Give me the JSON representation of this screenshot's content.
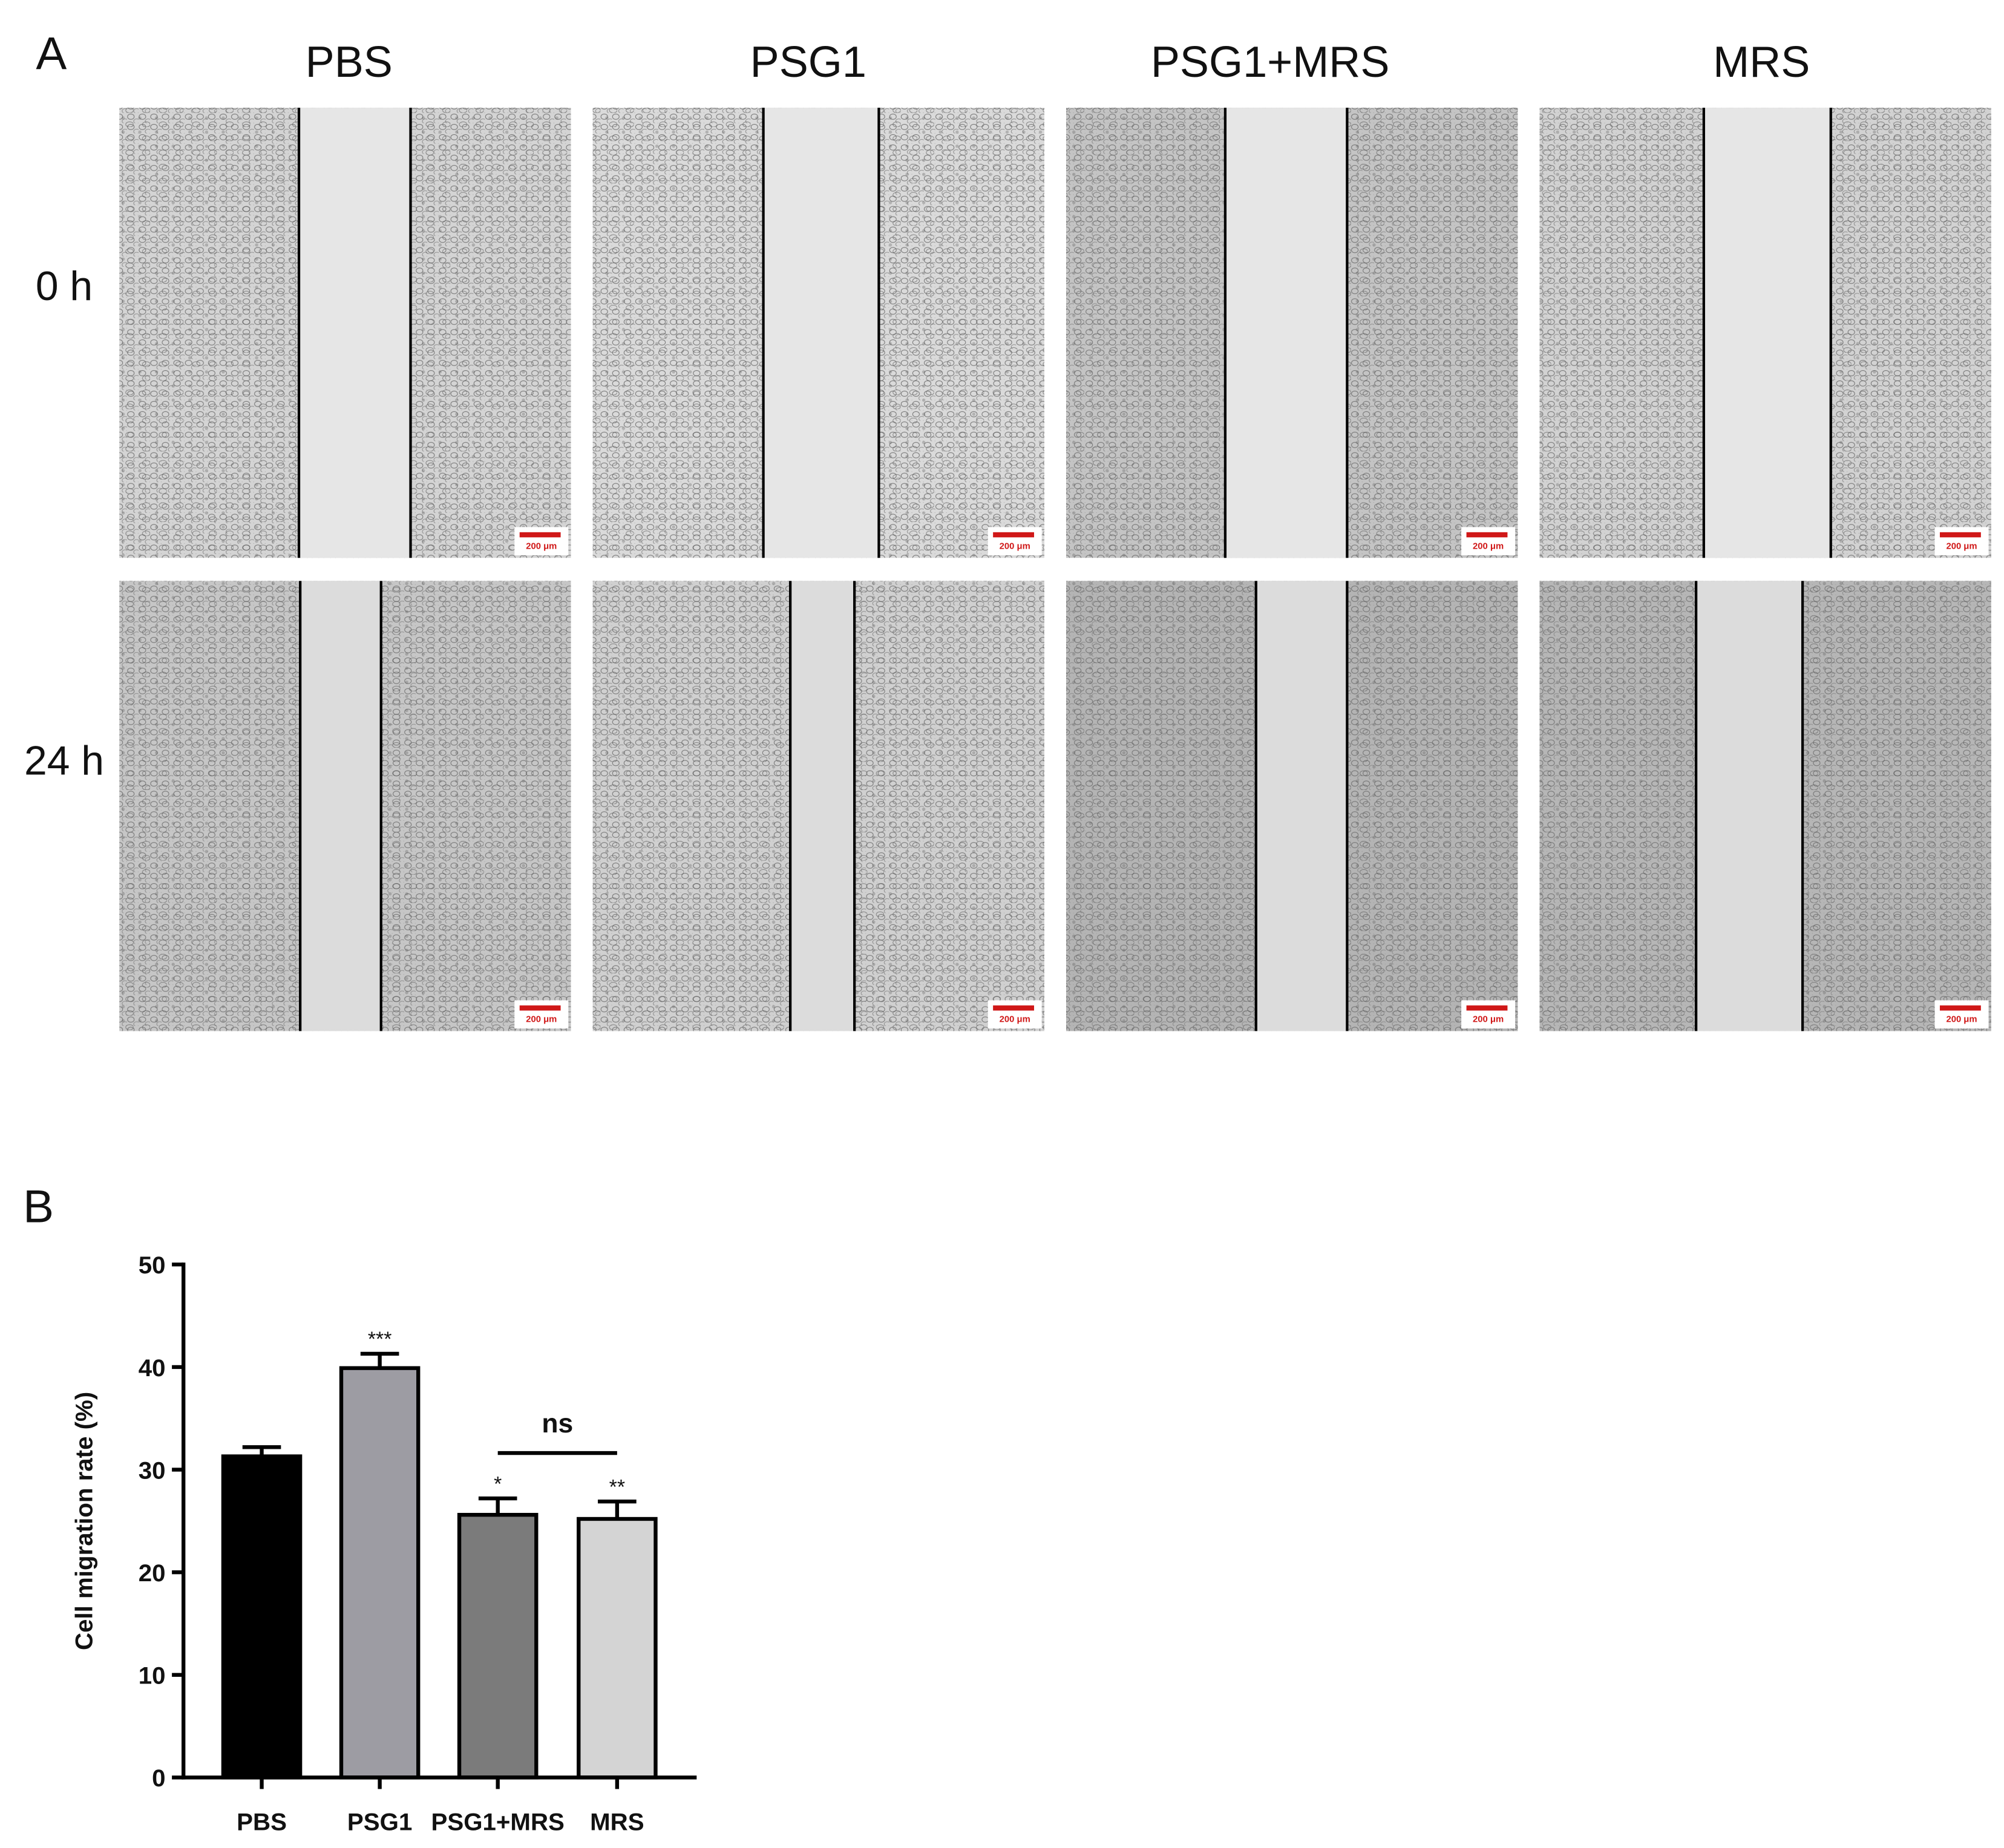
{
  "panel_a": {
    "label": "A",
    "columns": [
      "PBS",
      "PSG1",
      "PSG1+MRS",
      "MRS"
    ],
    "rows": [
      "0 h",
      "24 h"
    ],
    "scale_bar": "200 μm"
  },
  "chart_data": {
    "type": "bar",
    "panel_label": "B",
    "ylabel": "Cell migration rate (%)",
    "categories": [
      "PBS",
      "PSG1",
      "PSG1+MRS",
      "MRS"
    ],
    "values": [
      31.3,
      39.9,
      25.6,
      25.2
    ],
    "errors": [
      0.9,
      1.4,
      1.6,
      1.7
    ],
    "colors": [
      "#000000",
      "#9d9ca3",
      "#7b7b7b",
      "#d4d4d4"
    ],
    "significance": [
      null,
      "***",
      "*",
      "**"
    ],
    "comparison_label": "ns",
    "ylim": [
      0,
      50
    ],
    "yticks": [
      0,
      10,
      20,
      30,
      40,
      50
    ]
  }
}
